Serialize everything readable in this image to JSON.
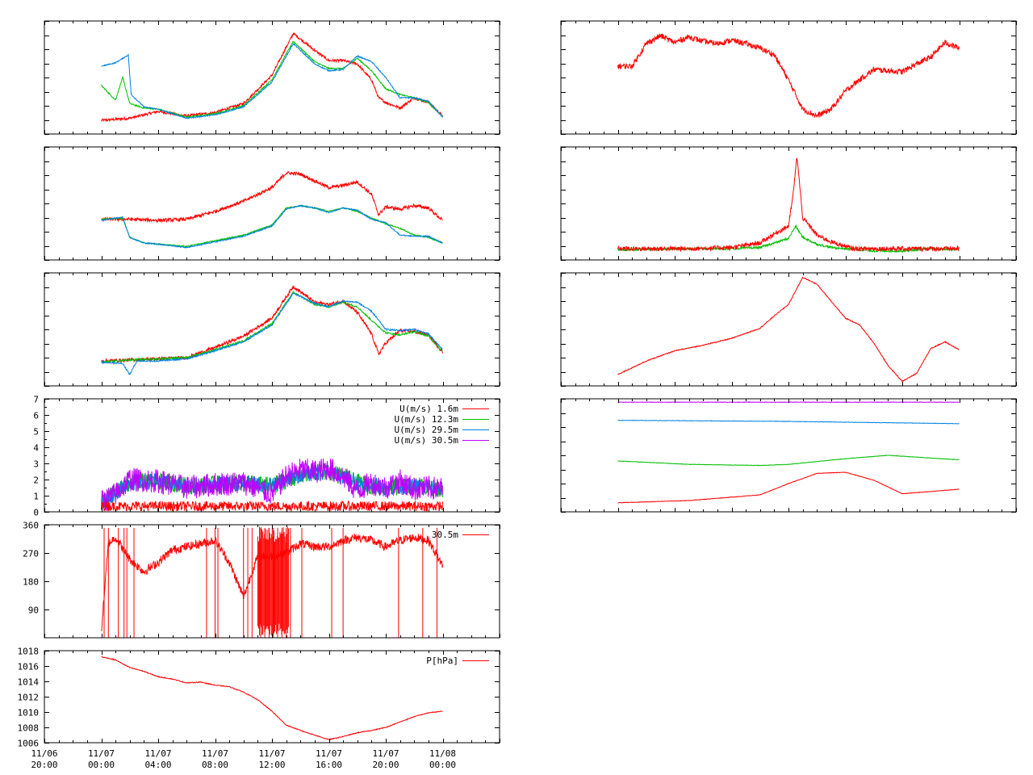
{
  "colors": {
    "red": "#ff0000",
    "green": "#00c000",
    "blue": "#0080e0",
    "purple": "#c000ff",
    "frame": "#000000",
    "background": "#ffffff"
  },
  "x_axis": {
    "domain_hours": [
      -4,
      28
    ],
    "ticks": [
      {
        "hour": -4,
        "date": "11/06",
        "time": "20:00"
      },
      {
        "hour": 0,
        "date": "11/07",
        "time": "00:00"
      },
      {
        "hour": 4,
        "date": "11/07",
        "time": "04:00"
      },
      {
        "hour": 8,
        "date": "11/07",
        "time": "08:00"
      },
      {
        "hour": 12,
        "date": "11/07",
        "time": "12:00"
      },
      {
        "hour": 16,
        "date": "11/07",
        "time": "16:00"
      },
      {
        "hour": 20,
        "date": "11/07",
        "time": "20:00"
      },
      {
        "hour": 24,
        "date": "11/08",
        "time": "00:00"
      }
    ]
  },
  "chart_data": [
    {
      "id": "L1",
      "type": "line",
      "column": "left",
      "row": 0,
      "ylim": [
        0,
        10
      ],
      "yticks": [],
      "series": [
        {
          "color": "red",
          "noise": 0.12,
          "x": [
            0,
            2,
            4,
            6,
            8,
            10,
            12,
            13.5,
            15,
            16,
            17,
            18,
            19,
            19.5,
            20,
            21,
            22,
            23,
            24
          ],
          "y": [
            1.2,
            1.4,
            2.0,
            1.6,
            1.9,
            2.7,
            5.2,
            8.9,
            7.4,
            6.5,
            6.5,
            6.2,
            4.8,
            3.2,
            2.8,
            2.3,
            3.2,
            2.8,
            1.6
          ]
        },
        {
          "color": "green",
          "noise": 0.06,
          "x": [
            0,
            1,
            1.5,
            2,
            3,
            4,
            6,
            8,
            10,
            12,
            13.5,
            15,
            16,
            17,
            18,
            19,
            20,
            21,
            22,
            23,
            24
          ],
          "y": [
            4.3,
            3.0,
            5.0,
            2.7,
            2.3,
            2.2,
            1.5,
            1.8,
            2.5,
            4.8,
            8.2,
            6.4,
            5.8,
            5.8,
            6.7,
            5.6,
            4.0,
            3.5,
            3.2,
            2.8,
            1.5
          ]
        },
        {
          "color": "blue",
          "noise": 0.05,
          "x": [
            0,
            1,
            1.9,
            2.1,
            3,
            4,
            6,
            8,
            10,
            12,
            13.5,
            15,
            16,
            17,
            18,
            19,
            20,
            21,
            22,
            23,
            24
          ],
          "y": [
            6.0,
            6.3,
            7.0,
            3.5,
            2.4,
            2.2,
            1.4,
            1.7,
            2.4,
            4.6,
            8.0,
            6.2,
            5.6,
            5.7,
            6.9,
            6.4,
            5.0,
            3.2,
            3.2,
            2.9,
            1.5
          ]
        }
      ]
    },
    {
      "id": "L2",
      "type": "line",
      "column": "left",
      "row": 1,
      "ylim": [
        0,
        10
      ],
      "yticks": [],
      "series": [
        {
          "color": "red",
          "noise": 0.15,
          "x": [
            0,
            2,
            4,
            6,
            8,
            10,
            12,
            13,
            14,
            15,
            16,
            17,
            18,
            19,
            19.5,
            20,
            21,
            22,
            23,
            24
          ],
          "y": [
            3.6,
            3.6,
            3.5,
            3.6,
            4.3,
            5.2,
            6.4,
            7.7,
            7.6,
            7.0,
            6.4,
            6.6,
            6.9,
            5.8,
            4.0,
            4.7,
            4.5,
            4.8,
            4.6,
            3.5
          ]
        },
        {
          "color": "green",
          "noise": 0.05,
          "x": [
            0,
            1.5,
            2,
            3,
            4,
            6,
            8,
            10,
            12,
            13,
            14,
            15,
            16,
            17,
            18,
            19,
            20,
            21,
            22,
            23,
            24
          ],
          "y": [
            3.6,
            3.7,
            2.0,
            1.5,
            1.4,
            1.2,
            1.7,
            2.2,
            3.1,
            4.6,
            4.8,
            4.6,
            4.3,
            4.6,
            4.3,
            3.7,
            3.2,
            2.8,
            2.2,
            2.0,
            1.5
          ]
        },
        {
          "color": "blue",
          "noise": 0.05,
          "x": [
            0,
            1.5,
            2,
            3,
            4,
            6,
            8,
            10,
            12,
            13,
            14,
            15,
            16,
            17,
            18,
            19,
            20,
            21,
            22,
            23,
            24
          ],
          "y": [
            3.5,
            3.8,
            2.0,
            1.5,
            1.4,
            1.1,
            1.6,
            2.1,
            3.0,
            4.5,
            4.8,
            4.6,
            4.2,
            4.6,
            4.4,
            3.6,
            3.3,
            2.2,
            2.1,
            2.1,
            1.5
          ]
        }
      ]
    },
    {
      "id": "L3",
      "type": "line",
      "column": "left",
      "row": 2,
      "ylim": [
        0,
        10
      ],
      "yticks": [],
      "series": [
        {
          "color": "red",
          "noise": 0.15,
          "x": [
            0,
            2,
            4,
            6,
            8,
            10,
            12,
            13.5,
            15,
            16,
            17,
            18,
            19,
            19.5,
            20,
            21,
            22,
            23,
            24
          ],
          "y": [
            2.2,
            2.3,
            2.4,
            2.5,
            3.4,
            4.4,
            6.0,
            8.8,
            7.4,
            7.2,
            7.5,
            6.5,
            4.6,
            2.8,
            3.8,
            4.9,
            4.8,
            4.5,
            3.0
          ]
        },
        {
          "color": "green",
          "noise": 0.07,
          "x": [
            0,
            2,
            4,
            6,
            8,
            10,
            12,
            13.5,
            15,
            16,
            17,
            18,
            19,
            20,
            21,
            22,
            23,
            24
          ],
          "y": [
            2.1,
            2.3,
            2.4,
            2.5,
            3.2,
            4.0,
            5.5,
            8.3,
            7.2,
            7.0,
            7.4,
            7.0,
            5.8,
            4.7,
            4.5,
            4.8,
            4.4,
            3.0
          ]
        },
        {
          "color": "blue",
          "noise": 0.07,
          "x": [
            0,
            1.5,
            2,
            2.5,
            4,
            6,
            8,
            10,
            12,
            13.5,
            15,
            16,
            17,
            18,
            19,
            20,
            21,
            22,
            23,
            24
          ],
          "y": [
            2.1,
            2.0,
            1.0,
            2.2,
            2.2,
            2.4,
            3.1,
            3.9,
            5.4,
            8.2,
            7.3,
            7.0,
            7.5,
            7.4,
            6.6,
            5.0,
            4.9,
            5.0,
            4.6,
            3.2
          ]
        }
      ]
    },
    {
      "id": "L4",
      "type": "line",
      "column": "left",
      "row": 3,
      "ylim": [
        0,
        7
      ],
      "yticks": [
        0,
        1,
        2,
        3,
        4,
        5,
        6,
        7
      ],
      "legend": [
        {
          "label": "U(m/s)  1.6m",
          "color": "red"
        },
        {
          "label": "U(m/s) 12.3m",
          "color": "green"
        },
        {
          "label": "U(m/s) 29.5m",
          "color": "blue"
        },
        {
          "label": "U(m/s) 30.5m",
          "color": "purple"
        }
      ],
      "series": [
        {
          "color": "green",
          "noise": 0.55,
          "x": [
            0,
            2,
            4,
            6,
            8,
            10,
            12,
            14,
            16,
            17,
            18,
            20,
            22,
            24
          ],
          "y": [
            0.6,
            1.8,
            1.9,
            1.6,
            1.7,
            1.8,
            1.6,
            2.3,
            2.5,
            2.2,
            1.8,
            1.5,
            1.6,
            1.4
          ]
        },
        {
          "color": "blue",
          "noise": 0.5,
          "x": [
            0,
            2,
            4,
            6,
            8,
            10,
            12,
            14,
            16,
            17,
            18,
            20,
            22,
            24
          ],
          "y": [
            0.6,
            1.8,
            1.9,
            1.6,
            1.7,
            1.8,
            1.6,
            2.3,
            2.5,
            2.2,
            1.8,
            1.5,
            1.6,
            1.4
          ]
        },
        {
          "color": "purple",
          "noise": 0.75,
          "x": [
            0,
            1,
            2,
            4,
            6,
            8,
            10,
            12,
            13,
            14,
            15,
            16,
            17,
            18,
            19,
            20,
            21,
            22,
            23,
            24
          ],
          "y": [
            0.6,
            1.1,
            2.0,
            1.9,
            1.5,
            1.7,
            1.8,
            1.1,
            2.2,
            2.6,
            2.5,
            2.7,
            2.2,
            1.3,
            1.8,
            1.5,
            1.9,
            1.4,
            1.5,
            1.4
          ]
        },
        {
          "color": "red",
          "noise": 0.3,
          "x": [
            0,
            24
          ],
          "y": [
            0.35,
            0.35
          ]
        }
      ]
    },
    {
      "id": "L5",
      "type": "line",
      "column": "left",
      "row": 4,
      "ylim": [
        0,
        360
      ],
      "yticks": [
        90,
        180,
        270,
        360
      ],
      "legend": [
        {
          "label": "    30.5m",
          "color": "red"
        }
      ],
      "series": [
        {
          "color": "red",
          "noise": 14,
          "x": [
            0,
            0.5,
            1,
            2,
            3,
            4,
            5,
            6,
            7,
            8,
            9,
            10,
            11,
            12,
            13,
            14,
            15,
            16,
            17,
            18,
            19,
            20,
            21,
            22,
            23,
            24
          ],
          "y": [
            20,
            300,
            320,
            250,
            210,
            240,
            280,
            290,
            300,
            310,
            240,
            130,
            260,
            260,
            270,
            300,
            290,
            290,
            310,
            320,
            310,
            290,
            310,
            320,
            310,
            230
          ]
        }
      ],
      "spikes_hours": [
        0.2,
        0.5,
        1.2,
        1.6,
        1.8,
        2.3,
        7.4,
        8.0,
        8.2,
        10.0,
        10.3,
        10.6,
        11.2,
        11.5,
        11.8,
        12.1,
        12.4,
        12.7,
        13.0,
        13.3,
        14.1,
        16.2,
        17.0,
        20.9,
        22.6,
        23.6
      ]
    },
    {
      "id": "L6",
      "type": "line",
      "column": "left",
      "row": 5,
      "ylim": [
        1006,
        1018
      ],
      "yticks": [
        1006,
        1008,
        1010,
        1012,
        1014,
        1016,
        1018
      ],
      "legend": [
        {
          "label": "P[hPa]",
          "color": "red"
        }
      ],
      "series": [
        {
          "color": "red",
          "noise": 0.05,
          "x": [
            0,
            1,
            2,
            3,
            4,
            5,
            6,
            7,
            8,
            9,
            10,
            11,
            12,
            13,
            14,
            15,
            16,
            17,
            18,
            19,
            20,
            21,
            22,
            23,
            24
          ],
          "y": [
            1017.2,
            1016.8,
            1015.8,
            1015.3,
            1014.6,
            1014.3,
            1013.8,
            1013.9,
            1013.5,
            1013.3,
            1012.6,
            1011.6,
            1010.1,
            1008.3,
            1007.6,
            1007.0,
            1006.4,
            1006.8,
            1007.3,
            1007.6,
            1008.0,
            1008.7,
            1009.4,
            1009.9,
            1010.1
          ]
        }
      ]
    },
    {
      "id": "R1",
      "type": "line",
      "column": "right",
      "row": 0,
      "ylim": [
        0,
        10
      ],
      "yticks": [],
      "series": [
        {
          "color": "red",
          "noise": 0.25,
          "x": [
            0,
            1,
            2,
            3,
            4,
            5,
            6,
            7,
            8,
            9,
            10,
            11,
            12,
            13,
            14,
            15,
            16,
            17,
            18,
            19,
            20,
            21,
            22,
            23,
            24
          ],
          "y": [
            6.0,
            6.0,
            8.0,
            8.7,
            8.1,
            8.6,
            8.2,
            8.0,
            8.3,
            8.0,
            7.6,
            7.0,
            4.8,
            2.2,
            1.6,
            2.2,
            3.8,
            4.8,
            5.7,
            5.6,
            5.5,
            6.2,
            6.8,
            8.1,
            7.6
          ]
        }
      ]
    },
    {
      "id": "R2",
      "type": "line",
      "column": "right",
      "row": 1,
      "ylim": [
        0,
        10
      ],
      "yticks": [],
      "series": [
        {
          "color": "green",
          "noise": 0.1,
          "x": [
            0,
            5,
            8,
            10,
            11,
            12,
            12.5,
            13,
            14,
            15,
            16,
            18,
            20,
            22,
            24
          ],
          "y": [
            0.9,
            1.0,
            1.0,
            1.1,
            1.5,
            1.9,
            3.0,
            2.0,
            1.4,
            1.1,
            1.0,
            0.8,
            0.8,
            1.0,
            0.9
          ]
        },
        {
          "color": "red",
          "noise": 0.2,
          "x": [
            0,
            5,
            8,
            10,
            11,
            12,
            12.3,
            12.6,
            13,
            13.5,
            14,
            15,
            16,
            16.5,
            17,
            20,
            24
          ],
          "y": [
            1.0,
            1.0,
            1.1,
            1.5,
            2.3,
            3.0,
            5.5,
            9.2,
            3.7,
            3.0,
            2.2,
            1.6,
            1.2,
            1.0,
            1.0,
            1.0,
            1.0
          ]
        }
      ]
    },
    {
      "id": "R3",
      "type": "line",
      "column": "right",
      "row": 2,
      "ylim": [
        0,
        10
      ],
      "yticks": [],
      "series": [
        {
          "color": "red",
          "noise": 0.04,
          "x": [
            0,
            2,
            4,
            6,
            8,
            10,
            11,
            12,
            13,
            14,
            15,
            16,
            17,
            18,
            19,
            20,
            21,
            22,
            23,
            24
          ],
          "y": [
            1.0,
            2.2,
            3.1,
            3.6,
            4.2,
            5.1,
            6.2,
            7.2,
            9.6,
            9.0,
            7.5,
            6.0,
            5.4,
            3.8,
            1.8,
            0.4,
            1.1,
            3.3,
            3.9,
            3.2
          ]
        }
      ]
    },
    {
      "id": "R4",
      "type": "line",
      "column": "right",
      "row": 3,
      "ylim": [
        0,
        10
      ],
      "yticks": [],
      "series": [
        {
          "color": "purple",
          "noise": 0.02,
          "x": [
            0,
            24
          ],
          "y": [
            9.7,
            9.7
          ]
        },
        {
          "color": "blue",
          "noise": 0.02,
          "x": [
            0,
            12,
            24
          ],
          "y": [
            8.1,
            8.0,
            7.8
          ]
        },
        {
          "color": "green",
          "noise": 0.02,
          "x": [
            0,
            5,
            10,
            12,
            16,
            19,
            24
          ],
          "y": [
            4.5,
            4.2,
            4.1,
            4.2,
            4.7,
            5.0,
            4.6
          ]
        },
        {
          "color": "red",
          "noise": 0.02,
          "x": [
            0,
            5,
            10,
            12,
            14,
            16,
            18,
            20,
            22,
            24
          ],
          "y": [
            0.8,
            1.0,
            1.5,
            2.5,
            3.4,
            3.5,
            2.8,
            1.6,
            1.8,
            2.0
          ]
        }
      ]
    }
  ]
}
